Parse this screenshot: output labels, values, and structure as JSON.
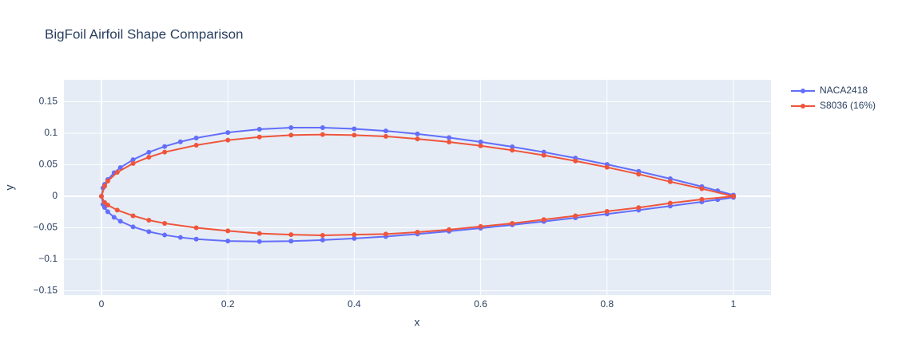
{
  "chart_data": {
    "type": "line",
    "title": "BigFoil Airfoil Shape Comparison",
    "xlabel": "x",
    "ylabel": "y",
    "xlim": [
      -0.0594,
      1.0594
    ],
    "ylim": [
      -0.157,
      0.1848
    ],
    "xticks": [
      0,
      0.2,
      0.4,
      0.6,
      0.8,
      1
    ],
    "yticks": [
      {
        "value": -0.15,
        "label": "−0.15"
      },
      {
        "value": -0.1,
        "label": "−0.1"
      },
      {
        "value": -0.05,
        "label": "−0.05"
      },
      0,
      0.05,
      0.1,
      0.15
    ],
    "grid": true,
    "legend": "top-right",
    "series": [
      {
        "name": "NACA2418",
        "color": "#636efa",
        "x": [
          1,
          0.975,
          0.95,
          0.9,
          0.85,
          0.8,
          0.75,
          0.7,
          0.65,
          0.6,
          0.55,
          0.5,
          0.45,
          0.4,
          0.35,
          0.3,
          0.25,
          0.2,
          0.15,
          0.125,
          0.1,
          0.075,
          0.05,
          0.03,
          0.02,
          0.01,
          0.005,
          0.0025,
          0,
          0.0025,
          0.005,
          0.01,
          0.02,
          0.03,
          0.05,
          0.075,
          0.1,
          0.125,
          0.15,
          0.2,
          0.25,
          0.3,
          0.35,
          0.4,
          0.45,
          0.5,
          0.55,
          0.6,
          0.65,
          0.7,
          0.75,
          0.8,
          0.85,
          0.9,
          0.95,
          0.975,
          1
        ],
        "values": [
          0.0019,
          0.0087,
          0.0153,
          0.0278,
          0.0395,
          0.0505,
          0.0606,
          0.07,
          0.0785,
          0.0862,
          0.093,
          0.0989,
          0.1036,
          0.107,
          0.1089,
          0.1088,
          0.1063,
          0.1011,
          0.0924,
          0.0864,
          0.079,
          0.0698,
          0.058,
          0.0455,
          0.0373,
          0.0265,
          0.0188,
          0.0133,
          0,
          -0.0128,
          -0.0178,
          -0.0246,
          -0.0334,
          -0.0397,
          -0.0486,
          -0.0562,
          -0.0615,
          -0.0653,
          -0.068,
          -0.0711,
          -0.0719,
          -0.0713,
          -0.0695,
          -0.067,
          -0.0639,
          -0.06,
          -0.0555,
          -0.0507,
          -0.0455,
          -0.04,
          -0.0342,
          -0.0282,
          -0.022,
          -0.0156,
          -0.0089,
          -0.0054,
          -0.0019
        ]
      },
      {
        "name": "S8036 (16%)",
        "color": "#EF553B",
        "x": [
          1,
          0.95,
          0.9,
          0.85,
          0.8,
          0.75,
          0.7,
          0.65,
          0.6,
          0.55,
          0.5,
          0.45,
          0.4,
          0.35,
          0.3,
          0.25,
          0.2,
          0.15,
          0.1,
          0.075,
          0.05,
          0.025,
          0.01,
          0.005,
          0,
          0.005,
          0.01,
          0.025,
          0.05,
          0.075,
          0.1,
          0.15,
          0.2,
          0.25,
          0.3,
          0.35,
          0.4,
          0.45,
          0.5,
          0.55,
          0.6,
          0.65,
          0.7,
          0.75,
          0.8,
          0.85,
          0.9,
          0.95,
          1
        ],
        "values": [
          0,
          0.012,
          0.023,
          0.035,
          0.046,
          0.056,
          0.065,
          0.073,
          0.08,
          0.086,
          0.091,
          0.095,
          0.097,
          0.098,
          0.097,
          0.094,
          0.089,
          0.081,
          0.07,
          0.062,
          0.052,
          0.038,
          0.024,
          0.016,
          0,
          -0.01,
          -0.014,
          -0.022,
          -0.031,
          -0.038,
          -0.043,
          -0.05,
          -0.055,
          -0.059,
          -0.061,
          -0.062,
          -0.061,
          -0.06,
          -0.057,
          -0.053,
          -0.048,
          -0.043,
          -0.037,
          -0.031,
          -0.024,
          -0.018,
          -0.011,
          -0.005,
          0
        ]
      }
    ]
  }
}
